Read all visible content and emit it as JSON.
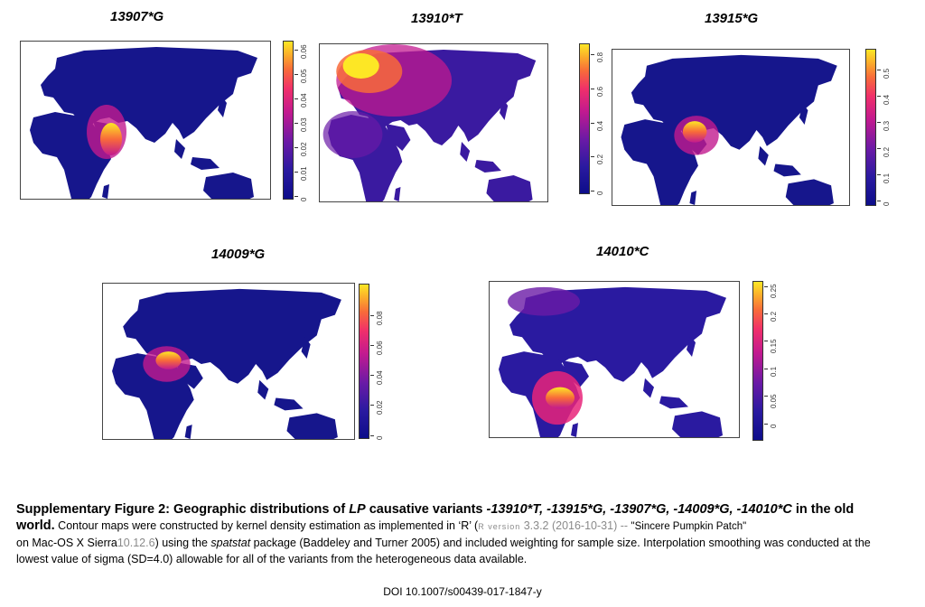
{
  "panels": [
    {
      "title": "13907*G",
      "ticks": [
        "0",
        "0.01",
        "0.02",
        "0.03",
        "0.04",
        "0.05",
        "0.06"
      ]
    },
    {
      "title": "13910*T",
      "ticks": [
        "0",
        "0.2",
        "0.4",
        "0.6",
        "0.8"
      ]
    },
    {
      "title": "13915*G",
      "ticks": [
        "0",
        "0.1",
        "0.2",
        "0.3",
        "0.4",
        "0.5"
      ]
    },
    {
      "title": "14009*G",
      "ticks": [
        "0",
        "0.02",
        "0.04",
        "0.06",
        "0.08"
      ]
    },
    {
      "title": "14010*C",
      "ticks": [
        "0",
        "0.05",
        "0.1",
        "0.15",
        "0.2",
        "0.25"
      ]
    }
  ],
  "caption": {
    "heading_bold": "Supplementary Figure 2: Geographic distributions of ",
    "heading_lp": "LP",
    "heading_mid": " causative variants ",
    "heading_variants": "-13910*T, -13915*G, -13907*G, -14009*G, -14010*C",
    "heading_end": " in the old",
    "heading_world": "world.",
    "text1": " Contour maps were constructed by kernel density estimation as implemented in ‘R’ (",
    "r_small": "R version",
    "r_version": " 3.3.2 (2016-10-31) -- ",
    "r_name": "\"Sincere Pumpkin Patch\"",
    "text2a": "on  Mac-OS X Sierra",
    "osver": "10.12.6",
    "text2b": ") using the ",
    "spatstat": "spatstat",
    "text2c": " package (Baddeley and Turner 2005) and included weighting for sample size. Interpolation smoothing was conducted at the",
    "text3": "lowest value of sigma (SD=4.0) allowable for all of the variants from the heterogeneous data available."
  },
  "doi": "DOI 10.1007/s00439-017-1847-y",
  "colors": {
    "ocean_land_low": "#14148c",
    "high": "#fde725",
    "mid": "#e8257a"
  }
}
